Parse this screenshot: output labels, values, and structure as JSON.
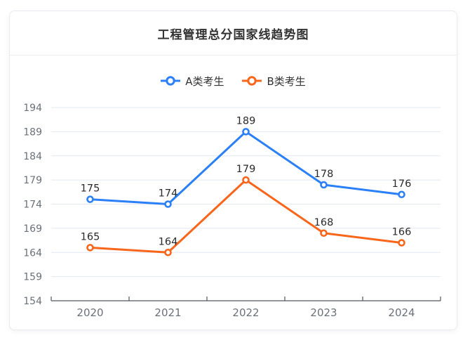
{
  "title": "工程管理总分国家线趋势图",
  "chart_data": {
    "type": "line",
    "title": "工程管理总分国家线趋势图",
    "categories": [
      "2020",
      "2021",
      "2022",
      "2023",
      "2024"
    ],
    "series": [
      {
        "name": "A类考生",
        "color": "#2b80f7",
        "values": [
          175,
          174,
          189,
          178,
          176
        ]
      },
      {
        "name": "B类考生",
        "color": "#f7661b",
        "values": [
          165,
          164,
          179,
          168,
          166
        ]
      }
    ],
    "ylim": [
      154,
      194
    ],
    "ytick_step": 5,
    "grid": true,
    "legend_position": "top",
    "marker": "hollow-circle",
    "data_labels": true,
    "axis_color": "#51565e",
    "grid_color": "#e2e7f2",
    "label_color": "#6b7179",
    "data_label_color": "#2a2a2a"
  }
}
